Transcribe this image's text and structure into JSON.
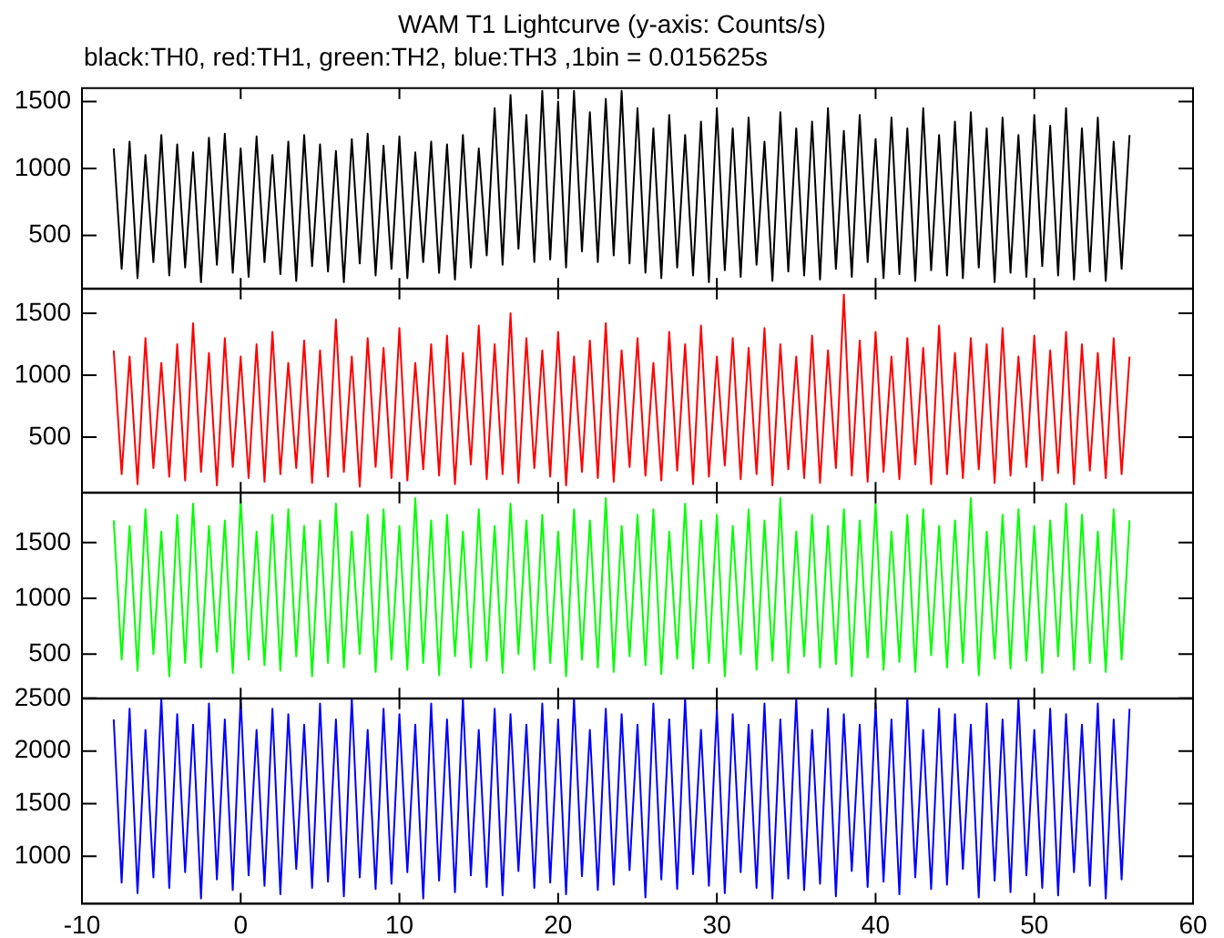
{
  "chart_data": [
    {
      "type": "line",
      "title": "WAM T1 Lightcurve (y-axis: Counts/s)",
      "subtitle": "black:TH0, red:TH1, green:TH2, blue:TH3 ,1bin = 0.015625s",
      "marker": "none",
      "legend": false,
      "grid": false,
      "tick_labels": "y",
      "x": [
        -8,
        -7.5,
        -7,
        -6.5,
        -6,
        -5.5,
        -5,
        -4.5,
        -4,
        -3.5,
        -3,
        -2.5,
        -2,
        -1.5,
        -1,
        -0.5,
        0,
        0.5,
        1,
        1.5,
        2,
        2.5,
        3,
        3.5,
        4,
        4.5,
        5,
        5.5,
        6,
        6.5,
        7,
        7.5,
        8,
        8.5,
        9,
        9.5,
        10,
        10.5,
        11,
        11.5,
        12,
        12.5,
        13,
        13.5,
        14,
        14.5,
        15,
        15.5,
        16,
        16.5,
        17,
        17.5,
        18,
        18.5,
        19,
        19.5,
        20,
        20.5,
        21,
        21.5,
        22,
        22.5,
        23,
        23.5,
        24,
        24.5,
        25,
        25.5,
        26,
        26.5,
        27,
        27.5,
        28,
        28.5,
        29,
        29.5,
        30,
        30.5,
        31,
        31.5,
        32,
        32.5,
        33,
        33.5,
        34,
        34.5,
        35,
        35.5,
        36,
        36.5,
        37,
        37.5,
        38,
        38.5,
        39,
        39.5,
        40,
        40.5,
        41,
        41.5,
        42,
        42.5,
        43,
        43.5,
        44,
        44.5,
        45,
        45.5,
        46,
        46.5,
        47,
        47.5,
        48,
        48.5,
        49,
        49.5,
        50,
        50.5,
        51,
        51.5,
        52,
        52.5,
        53,
        53.5,
        54,
        54.5,
        55,
        55.5,
        56
      ],
      "xlim": [
        -10,
        60
      ],
      "xticks": [
        -10,
        0,
        10,
        20,
        30,
        40,
        50,
        60
      ],
      "ylim": [
        100,
        1600
      ],
      "yticks": [
        500,
        1000,
        1500
      ],
      "series": [
        {
          "color": "#000000",
          "values": [
            1150,
            250,
            1200,
            180,
            1100,
            300,
            1250,
            200,
            1180,
            260,
            1120,
            150,
            1230,
            280,
            1260,
            220,
            1150,
            190,
            1240,
            300,
            1100,
            210,
            1200,
            160,
            1250,
            270,
            1180,
            230,
            1130,
            150,
            1220,
            290,
            1260,
            200,
            1170,
            250,
            1240,
            180,
            1120,
            300,
            1200,
            220,
            1180,
            170,
            1250,
            260,
            1150,
            350,
            1450,
            280,
            1550,
            400,
            1400,
            300,
            1580,
            320,
            1500,
            260,
            1580,
            380,
            1420,
            300,
            1520,
            350,
            1580,
            290,
            1450,
            220,
            1300,
            180,
            1400,
            260,
            1250,
            200,
            1350,
            150,
            1450,
            240,
            1300,
            190,
            1380,
            280,
            1200,
            160,
            1420,
            230,
            1300,
            200,
            1350,
            170,
            1450,
            250,
            1280,
            190,
            1400,
            300,
            1220,
            180,
            1380,
            210,
            1300,
            160,
            1450,
            240,
            1250,
            200,
            1350,
            180,
            1420,
            260,
            1300,
            150,
            1380,
            220,
            1250,
            190,
            1400,
            270,
            1320,
            200,
            1450,
            170,
            1300,
            230,
            1380,
            160,
            1200,
            250,
            1250
          ]
        }
      ]
    },
    {
      "type": "line",
      "marker": "none",
      "legend": false,
      "grid": false,
      "tick_labels": "y",
      "x": [
        -8,
        -7.5,
        -7,
        -6.5,
        -6,
        -5.5,
        -5,
        -4.5,
        -4,
        -3.5,
        -3,
        -2.5,
        -2,
        -1.5,
        -1,
        -0.5,
        0,
        0.5,
        1,
        1.5,
        2,
        2.5,
        3,
        3.5,
        4,
        4.5,
        5,
        5.5,
        6,
        6.5,
        7,
        7.5,
        8,
        8.5,
        9,
        9.5,
        10,
        10.5,
        11,
        11.5,
        12,
        12.5,
        13,
        13.5,
        14,
        14.5,
        15,
        15.5,
        16,
        16.5,
        17,
        17.5,
        18,
        18.5,
        19,
        19.5,
        20,
        20.5,
        21,
        21.5,
        22,
        22.5,
        23,
        23.5,
        24,
        24.5,
        25,
        25.5,
        26,
        26.5,
        27,
        27.5,
        28,
        28.5,
        29,
        29.5,
        30,
        30.5,
        31,
        31.5,
        32,
        32.5,
        33,
        33.5,
        34,
        34.5,
        35,
        35.5,
        36,
        36.5,
        37,
        37.5,
        38,
        38.5,
        39,
        39.5,
        40,
        40.5,
        41,
        41.5,
        42,
        42.5,
        43,
        43.5,
        44,
        44.5,
        45,
        45.5,
        46,
        46.5,
        47,
        47.5,
        48,
        48.5,
        49,
        49.5,
        50,
        50.5,
        51,
        51.5,
        52,
        52.5,
        53,
        53.5,
        54,
        54.5,
        55,
        55.5,
        56
      ],
      "xlim": [
        -10,
        60
      ],
      "xticks": [
        -10,
        0,
        10,
        20,
        30,
        40,
        50,
        60
      ],
      "ylim": [
        50,
        1700
      ],
      "yticks": [
        500,
        1000,
        1500
      ],
      "series": [
        {
          "color": "#ff0000",
          "values": [
            1200,
            200,
            1150,
            120,
            1300,
            250,
            1100,
            180,
            1250,
            150,
            1420,
            220,
            1180,
            110,
            1300,
            260,
            1150,
            170,
            1250,
            140,
            1350,
            200,
            1100,
            250,
            1280,
            130,
            1200,
            180,
            1450,
            220,
            1150,
            100,
            1300,
            260,
            1220,
            170,
            1380,
            150,
            1100,
            240,
            1250,
            190,
            1320,
            120,
            1180,
            280,
            1400,
            160,
            1250,
            200,
            1500,
            130,
            1300,
            250,
            1200,
            180,
            1350,
            110,
            1150,
            220,
            1280,
            170,
            1420,
            140,
            1200,
            260,
            1300,
            190,
            1100,
            150,
            1350,
            230,
            1250,
            120,
            1400,
            180,
            1150,
            270,
            1300,
            160,
            1220,
            200,
            1380,
            110,
            1250,
            240,
            1150,
            170,
            1320,
            130,
            1200,
            250,
            1650,
            190,
            1280,
            140,
            1350,
            220,
            1150,
            160,
            1300,
            280,
            1220,
            120,
            1400,
            200,
            1180,
            170,
            1300,
            240,
            1250,
            130,
            1380,
            190,
            1150,
            260,
            1320,
            150,
            1200,
            210,
            1350,
            120,
            1250,
            230,
            1180,
            170,
            1300,
            200,
            1150
          ]
        }
      ]
    },
    {
      "type": "line",
      "marker": "none",
      "legend": false,
      "grid": false,
      "tick_labels": "y",
      "x": [
        -8,
        -7.5,
        -7,
        -6.5,
        -6,
        -5.5,
        -5,
        -4.5,
        -4,
        -3.5,
        -3,
        -2.5,
        -2,
        -1.5,
        -1,
        -0.5,
        0,
        0.5,
        1,
        1.5,
        2,
        2.5,
        3,
        3.5,
        4,
        4.5,
        5,
        5.5,
        6,
        6.5,
        7,
        7.5,
        8,
        8.5,
        9,
        9.5,
        10,
        10.5,
        11,
        11.5,
        12,
        12.5,
        13,
        13.5,
        14,
        14.5,
        15,
        15.5,
        16,
        16.5,
        17,
        17.5,
        18,
        18.5,
        19,
        19.5,
        20,
        20.5,
        21,
        21.5,
        22,
        22.5,
        23,
        23.5,
        24,
        24.5,
        25,
        25.5,
        26,
        26.5,
        27,
        27.5,
        28,
        28.5,
        29,
        29.5,
        30,
        30.5,
        31,
        31.5,
        32,
        32.5,
        33,
        33.5,
        34,
        34.5,
        35,
        35.5,
        36,
        36.5,
        37,
        37.5,
        38,
        38.5,
        39,
        39.5,
        40,
        40.5,
        41,
        41.5,
        42,
        42.5,
        43,
        43.5,
        44,
        44.5,
        45,
        45.5,
        46,
        46.5,
        47,
        47.5,
        48,
        48.5,
        49,
        49.5,
        50,
        50.5,
        51,
        51.5,
        52,
        52.5,
        53,
        53.5,
        54,
        54.5,
        55,
        55.5,
        56
      ],
      "xlim": [
        -10,
        60
      ],
      "xticks": [
        -10,
        0,
        10,
        20,
        30,
        40,
        50,
        60
      ],
      "ylim": [
        100,
        1950
      ],
      "yticks": [
        500,
        1000,
        1500
      ],
      "series": [
        {
          "color": "#00ff00",
          "values": [
            1700,
            450,
            1650,
            350,
            1800,
            500,
            1600,
            300,
            1750,
            420,
            1850,
            380,
            1650,
            520,
            1700,
            330,
            1900,
            450,
            1600,
            400,
            1750,
            350,
            1800,
            480,
            1650,
            300,
            1700,
            420,
            1850,
            380,
            1600,
            500,
            1750,
            340,
            1800,
            450,
            1650,
            360,
            1900,
            420,
            1700,
            310,
            1750,
            480,
            1600,
            380,
            1800,
            440,
            1650,
            330,
            1850,
            500,
            1700,
            360,
            1750,
            420,
            1600,
            300,
            1800,
            450,
            1700,
            380,
            1900,
            340,
            1650,
            480,
            1750,
            400,
            1800,
            320,
            1600,
            460,
            1850,
            370,
            1700,
            420,
            1750,
            300,
            1650,
            500,
            1800,
            360,
            1700,
            440,
            1900,
            330,
            1600,
            480,
            1750,
            380,
            1650,
            410,
            1800,
            300,
            1700,
            470,
            1850,
            360,
            1600,
            430,
            1750,
            340,
            1800,
            490,
            1650,
            380,
            1700,
            420,
            1900,
            310,
            1600,
            460,
            1750,
            370,
            1800,
            440,
            1650,
            330,
            1700,
            480,
            1850,
            360,
            1750,
            420,
            1600,
            340,
            1800,
            450,
            1700
          ]
        }
      ]
    },
    {
      "type": "line",
      "marker": "none",
      "legend": false,
      "grid": false,
      "x": [
        -8,
        -7.5,
        -7,
        -6.5,
        -6,
        -5.5,
        -5,
        -4.5,
        -4,
        -3.5,
        -3,
        -2.5,
        -2,
        -1.5,
        -1,
        -0.5,
        0,
        0.5,
        1,
        1.5,
        2,
        2.5,
        3,
        3.5,
        4,
        4.5,
        5,
        5.5,
        6,
        6.5,
        7,
        7.5,
        8,
        8.5,
        9,
        9.5,
        10,
        10.5,
        11,
        11.5,
        12,
        12.5,
        13,
        13.5,
        14,
        14.5,
        15,
        15.5,
        16,
        16.5,
        17,
        17.5,
        18,
        18.5,
        19,
        19.5,
        20,
        20.5,
        21,
        21.5,
        22,
        22.5,
        23,
        23.5,
        24,
        24.5,
        25,
        25.5,
        26,
        26.5,
        27,
        27.5,
        28,
        28.5,
        29,
        29.5,
        30,
        30.5,
        31,
        31.5,
        32,
        32.5,
        33,
        33.5,
        34,
        34.5,
        35,
        35.5,
        36,
        36.5,
        37,
        37.5,
        38,
        38.5,
        39,
        39.5,
        40,
        40.5,
        41,
        41.5,
        42,
        42.5,
        43,
        43.5,
        44,
        44.5,
        45,
        45.5,
        46,
        46.5,
        47,
        47.5,
        48,
        48.5,
        49,
        49.5,
        50,
        50.5,
        51,
        51.5,
        52,
        52.5,
        53,
        53.5,
        54,
        54.5,
        55,
        55.5,
        56
      ],
      "xlim": [
        -10,
        60
      ],
      "xticks": [
        -10,
        0,
        10,
        20,
        30,
        40,
        50,
        60
      ],
      "ylim": [
        550,
        2500
      ],
      "yticks": [
        1000,
        1500,
        2000,
        2500
      ],
      "series": [
        {
          "color": "#0000ff",
          "values": [
            2300,
            750,
            2400,
            650,
            2200,
            800,
            2500,
            700,
            2350,
            850,
            2250,
            600,
            2450,
            780,
            2300,
            680,
            2500,
            820,
            2200,
            720,
            2400,
            640,
            2350,
            880,
            2250,
            700,
            2450,
            760,
            2300,
            620,
            2500,
            800,
            2200,
            690,
            2400,
            740,
            2350,
            850,
            2250,
            600,
            2450,
            770,
            2300,
            660,
            2500,
            820,
            2200,
            710,
            2400,
            630,
            2350,
            860,
            2250,
            700,
            2450,
            750,
            2300,
            640,
            2500,
            810,
            2200,
            680,
            2400,
            730,
            2350,
            870,
            2250,
            610,
            2450,
            780,
            2300,
            690,
            2500,
            830,
            2200,
            720,
            2400,
            650,
            2350,
            850,
            2250,
            700,
            2450,
            600,
            2300,
            790,
            2500,
            680,
            2200,
            740,
            2400,
            620,
            2350,
            860,
            2250,
            710,
            2450,
            760,
            2300,
            640,
            2500,
            800,
            2200,
            690,
            2400,
            730,
            2350,
            880,
            2250,
            610,
            2450,
            770,
            2300,
            660,
            2500,
            820,
            2200,
            700,
            2400,
            630,
            2350,
            850,
            2250,
            720,
            2450,
            600,
            2300,
            780,
            2400
          ]
        }
      ]
    }
  ]
}
